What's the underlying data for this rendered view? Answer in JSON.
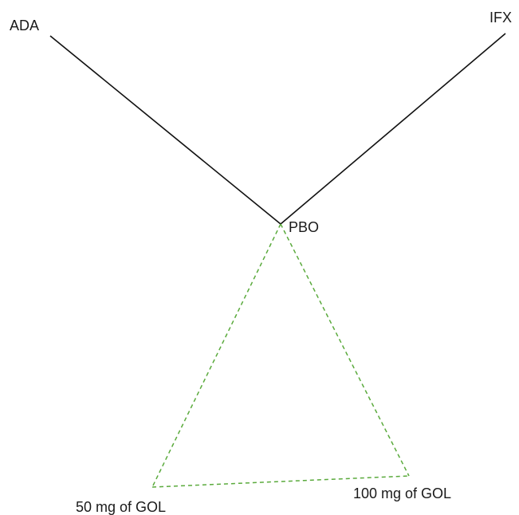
{
  "network": {
    "nodes": {
      "ada": {
        "label": "ADA"
      },
      "ifx": {
        "label": "IFX"
      },
      "pbo": {
        "label": "PBO"
      },
      "gol50": {
        "label": "50 mg of GOL"
      },
      "gol100": {
        "label": "100 mg of GOL"
      }
    },
    "edges": [
      {
        "from": "ada",
        "to": "pbo",
        "style": "solid",
        "color": "#111111"
      },
      {
        "from": "ifx",
        "to": "pbo",
        "style": "solid",
        "color": "#111111"
      },
      {
        "from": "pbo",
        "to": "gol50",
        "style": "dashed",
        "color": "#5aaa3c"
      },
      {
        "from": "pbo",
        "to": "gol100",
        "style": "dashed",
        "color": "#5aaa3c"
      },
      {
        "from": "gol50",
        "to": "gol100",
        "style": "dashed",
        "color": "#5aaa3c"
      }
    ]
  }
}
